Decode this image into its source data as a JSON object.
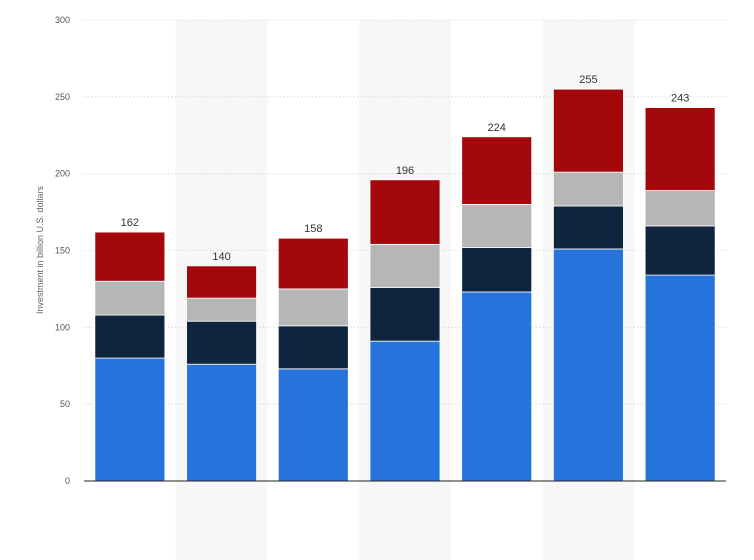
{
  "chart_data": {
    "type": "bar",
    "stacked": true,
    "categories": [
      "",
      "",
      "",
      "",
      "",
      "",
      ""
    ],
    "series": [
      {
        "values": [
          80,
          76,
          73,
          91,
          123,
          151,
          134
        ],
        "color": "#2673dc"
      },
      {
        "values": [
          28,
          28,
          28,
          35,
          29,
          28,
          32
        ],
        "color": "#0f253e"
      },
      {
        "values": [
          22,
          15,
          24,
          28,
          28,
          22,
          23
        ],
        "color": "#b6b6b6"
      },
      {
        "values": [
          32,
          21,
          33,
          42,
          44,
          54,
          54
        ],
        "color": "#a2080c"
      }
    ],
    "totals": [
      "162",
      "140",
      "158",
      "196",
      "224",
      "255",
      "243"
    ],
    "title": "",
    "xlabel": "",
    "ylabel": "Investment in billion U.S. dollars",
    "ylim": [
      0,
      300
    ],
    "yticks": [
      "0",
      "50",
      "100",
      "150",
      "200",
      "250",
      "300"
    ],
    "grid": true,
    "legend": "none"
  }
}
